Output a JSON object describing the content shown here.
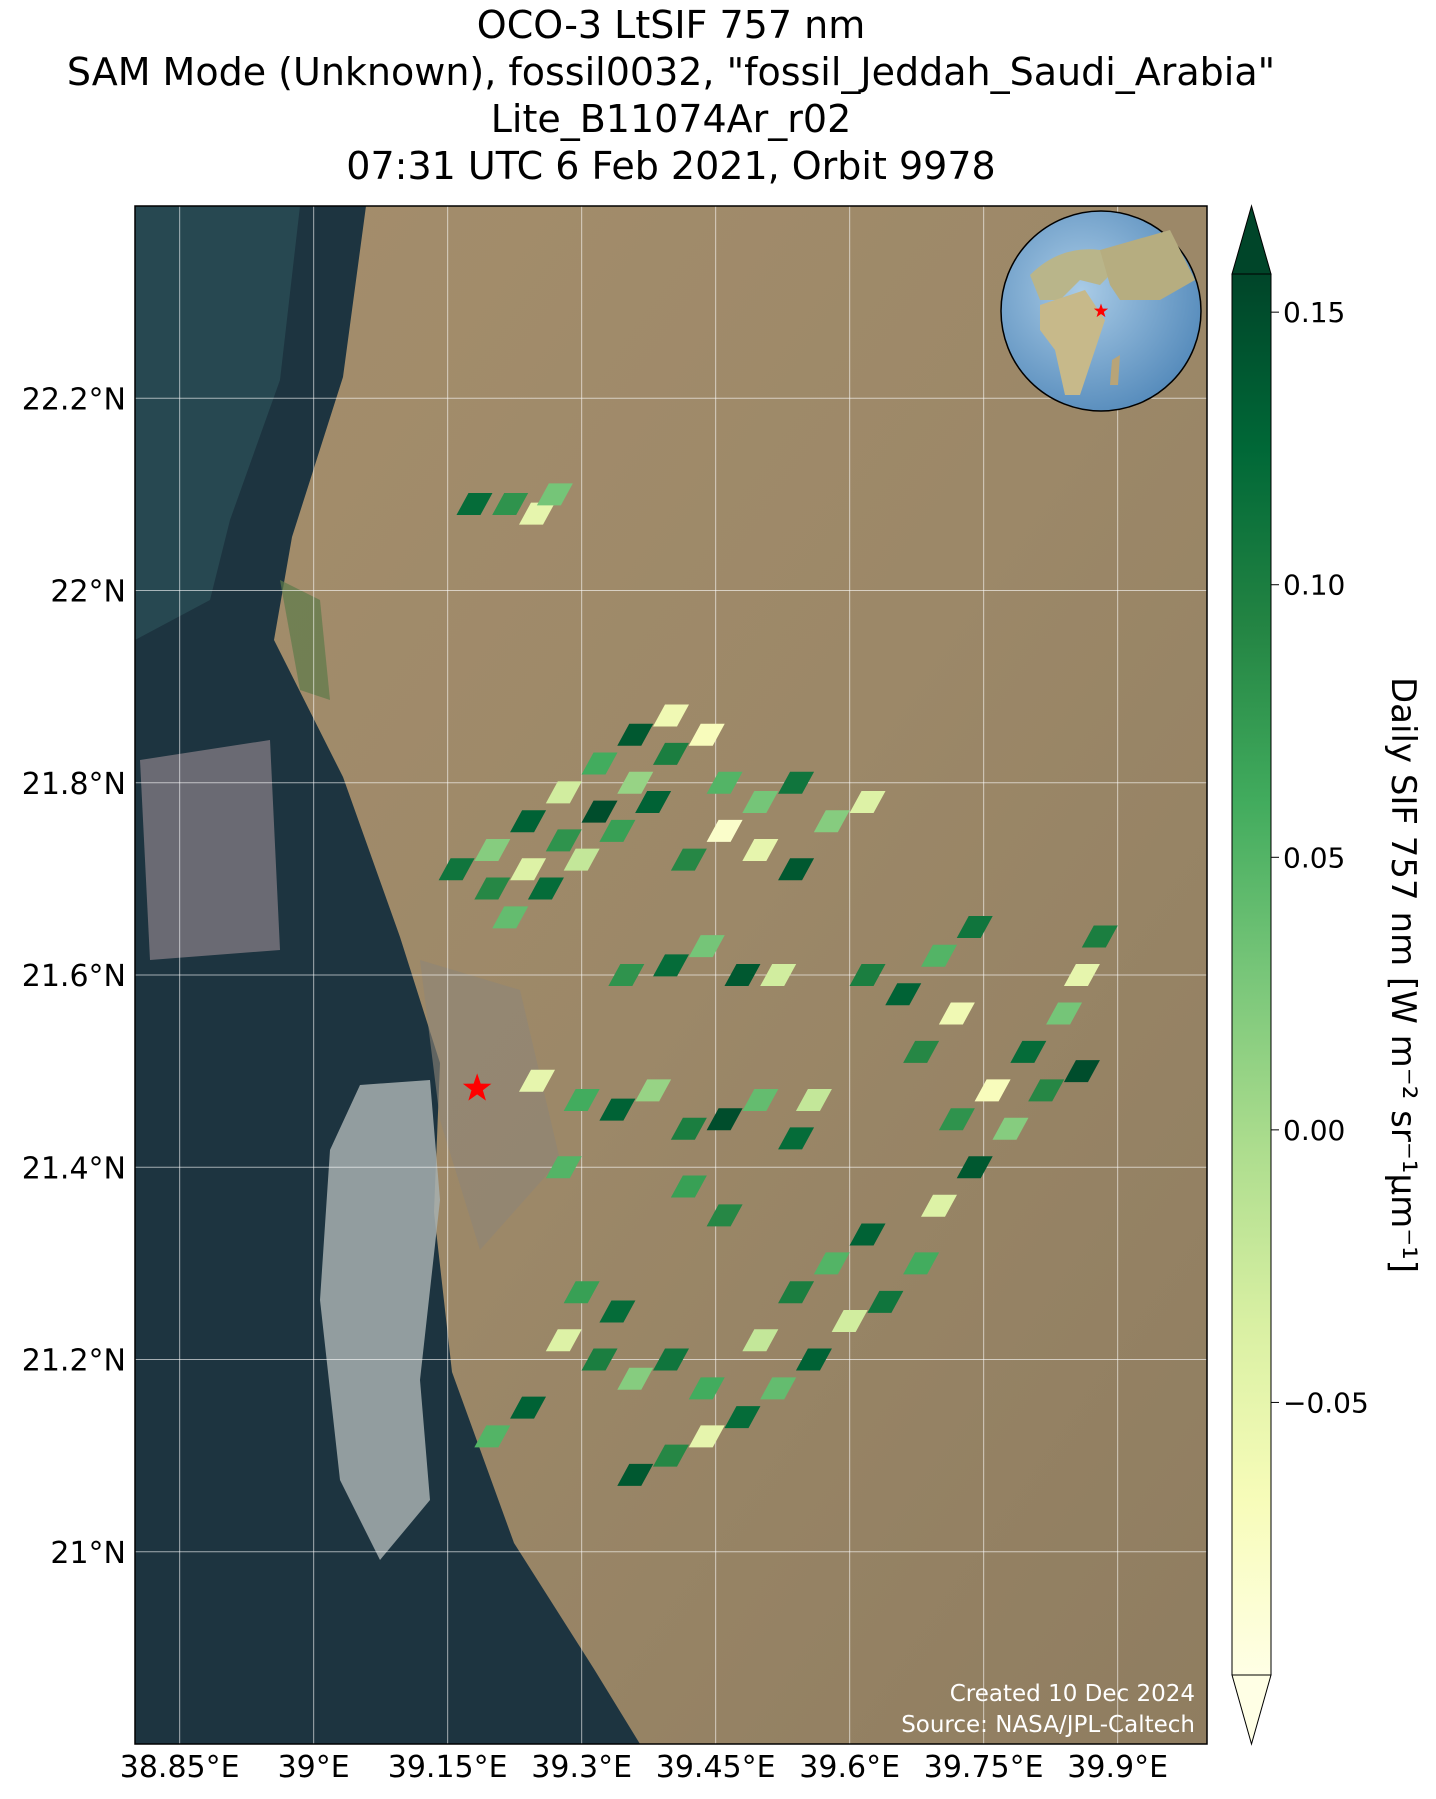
{
  "chart_data": {
    "type": "map",
    "title": [
      "OCO-3 LtSIF 757 nm",
      "SAM Mode (Unknown), fossil0032, \"fossil_Jeddah_Saudi_Arabia\"",
      "Lite_B11074Ar_r02",
      "07:31 UTC 6 Feb 2021, Orbit 9978"
    ],
    "xlim": [
      38.8,
      40.0
    ],
    "ylim": [
      20.8,
      22.4
    ],
    "xticks": [
      {
        "value": 38.85,
        "label": "38.85°E"
      },
      {
        "value": 39,
        "label": "39°E"
      },
      {
        "value": 39.15,
        "label": "39.15°E"
      },
      {
        "value": 39.3,
        "label": "39.3°E"
      },
      {
        "value": 39.45,
        "label": "39.45°E"
      },
      {
        "value": 39.6,
        "label": "39.6°E"
      },
      {
        "value": 39.75,
        "label": "39.75°E"
      },
      {
        "value": 39.9,
        "label": "39.9°E"
      }
    ],
    "yticks": [
      {
        "value": 21,
        "label": "21°N"
      },
      {
        "value": 21.2,
        "label": "21.2°N"
      },
      {
        "value": 21.4,
        "label": "21.4°N"
      },
      {
        "value": 21.6,
        "label": "21.6°N"
      },
      {
        "value": 21.8,
        "label": "21.8°N"
      },
      {
        "value": 22,
        "label": "22°N"
      },
      {
        "value": 22.2,
        "label": "22.2°N"
      }
    ],
    "grid": true,
    "colorbar": {
      "label": "Daily SIF 757 nm [W m⁻² sr⁻¹µm⁻¹]",
      "clim": [
        -0.1,
        0.157
      ],
      "ticks": [
        {
          "value": -0.05,
          "label": "−0.05"
        },
        {
          "value": 0,
          "label": "0.00"
        },
        {
          "value": 0.05,
          "label": "0.05"
        },
        {
          "value": 0.1,
          "label": "0.10"
        },
        {
          "value": 0.15,
          "label": "0.15"
        }
      ],
      "colormap": [
        "#ffffe5",
        "#f7fcb9",
        "#d9f0a3",
        "#addd8e",
        "#78c679",
        "#41ab5d",
        "#238443",
        "#006837",
        "#004529"
      ]
    },
    "target": {
      "lon": 39.183,
      "lat": 21.482,
      "color": "#ff0000"
    },
    "footprints": [
      [
        39.18,
        22.09,
        0.12
      ],
      [
        39.22,
        22.09,
        0.08
      ],
      [
        39.25,
        22.08,
        -0.05
      ],
      [
        39.27,
        22.1,
        0.03
      ],
      [
        39.16,
        21.71,
        0.11
      ],
      [
        39.2,
        21.73,
        0.02
      ],
      [
        39.24,
        21.76,
        0.13
      ],
      [
        39.28,
        21.79,
        -0.03
      ],
      [
        39.32,
        21.82,
        0.06
      ],
      [
        39.36,
        21.85,
        0.14
      ],
      [
        39.4,
        21.87,
        -0.06
      ],
      [
        39.2,
        21.69,
        0.09
      ],
      [
        39.24,
        21.71,
        -0.04
      ],
      [
        39.28,
        21.74,
        0.08
      ],
      [
        39.32,
        21.77,
        0.15
      ],
      [
        39.36,
        21.8,
        0.01
      ],
      [
        39.4,
        21.83,
        0.1
      ],
      [
        39.44,
        21.85,
        -0.07
      ],
      [
        39.22,
        21.66,
        0.04
      ],
      [
        39.26,
        21.69,
        0.12
      ],
      [
        39.3,
        21.72,
        -0.02
      ],
      [
        39.34,
        21.75,
        0.07
      ],
      [
        39.38,
        21.78,
        0.13
      ],
      [
        39.46,
        21.8,
        0.05
      ],
      [
        39.42,
        21.72,
        0.09
      ],
      [
        39.46,
        21.75,
        -0.08
      ],
      [
        39.5,
        21.78,
        0.03
      ],
      [
        39.54,
        21.8,
        0.11
      ],
      [
        39.5,
        21.73,
        -0.05
      ],
      [
        39.54,
        21.71,
        0.14
      ],
      [
        39.58,
        21.76,
        0.02
      ],
      [
        39.62,
        21.78,
        -0.04
      ],
      [
        39.35,
        21.6,
        0.08
      ],
      [
        39.4,
        21.61,
        0.12
      ],
      [
        39.44,
        21.63,
        0.03
      ],
      [
        39.48,
        21.6,
        0.14
      ],
      [
        39.52,
        21.6,
        -0.03
      ],
      [
        39.62,
        21.6,
        0.1
      ],
      [
        39.66,
        21.58,
        0.13
      ],
      [
        39.7,
        21.62,
        0.05
      ],
      [
        39.72,
        21.56,
        -0.06
      ],
      [
        39.68,
        21.52,
        0.09
      ],
      [
        39.74,
        21.65,
        0.11
      ],
      [
        39.25,
        21.49,
        -0.05
      ],
      [
        39.3,
        21.47,
        0.06
      ],
      [
        39.34,
        21.46,
        0.13
      ],
      [
        39.38,
        21.48,
        0.01
      ],
      [
        39.42,
        21.44,
        0.1
      ],
      [
        39.46,
        21.45,
        0.15
      ],
      [
        39.5,
        21.47,
        0.04
      ],
      [
        39.54,
        21.43,
        0.12
      ],
      [
        39.56,
        21.47,
        -0.02
      ],
      [
        39.42,
        21.38,
        0.07
      ],
      [
        39.46,
        21.35,
        0.09
      ],
      [
        39.28,
        21.4,
        0.05
      ],
      [
        39.72,
        21.45,
        0.08
      ],
      [
        39.76,
        21.48,
        -0.07
      ],
      [
        39.8,
        21.52,
        0.12
      ],
      [
        39.84,
        21.56,
        0.03
      ],
      [
        39.86,
        21.6,
        -0.05
      ],
      [
        39.88,
        21.64,
        0.1
      ],
      [
        39.74,
        21.4,
        0.14
      ],
      [
        39.78,
        21.44,
        0.02
      ],
      [
        39.82,
        21.48,
        0.09
      ],
      [
        39.86,
        21.5,
        0.15
      ],
      [
        39.7,
        21.36,
        -0.04
      ],
      [
        39.68,
        21.3,
        0.06
      ],
      [
        39.64,
        21.26,
        0.11
      ],
      [
        39.6,
        21.24,
        -0.03
      ],
      [
        39.56,
        21.2,
        0.13
      ],
      [
        39.52,
        21.17,
        0.04
      ],
      [
        39.48,
        21.14,
        0.12
      ],
      [
        39.44,
        21.12,
        -0.05
      ],
      [
        39.4,
        21.1,
        0.09
      ],
      [
        39.36,
        21.08,
        0.14
      ],
      [
        39.3,
        21.27,
        0.07
      ],
      [
        39.34,
        21.25,
        0.12
      ],
      [
        39.28,
        21.22,
        -0.04
      ],
      [
        39.32,
        21.2,
        0.1
      ],
      [
        39.24,
        21.15,
        0.13
      ],
      [
        39.2,
        21.12,
        0.05
      ],
      [
        39.36,
        21.18,
        0.02
      ],
      [
        39.4,
        21.2,
        0.11
      ],
      [
        39.44,
        21.17,
        0.06
      ],
      [
        39.5,
        21.22,
        -0.02
      ],
      [
        39.54,
        21.27,
        0.1
      ],
      [
        39.58,
        21.3,
        0.05
      ],
      [
        39.62,
        21.33,
        0.13
      ]
    ],
    "credits": [
      "Created 10 Dec 2024",
      "Source: NASA/JPL-Caltech"
    ]
  }
}
